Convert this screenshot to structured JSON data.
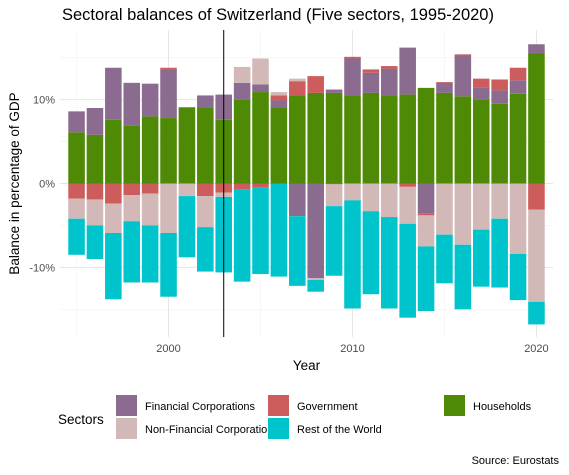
{
  "chart_data": {
    "type": "bar",
    "stacked": true,
    "title": "Sectoral balances of Switzerland (Five sectors, 1995-2020)",
    "xlabel": "Year",
    "ylabel": "Balance in percentage of GDP",
    "x_ticks": [
      2000,
      2010,
      2020
    ],
    "y_ticks": [
      -10,
      0,
      10
    ],
    "y_tick_labels": [
      "-10%",
      "0%",
      "10%"
    ],
    "xlim": [
      1994.1,
      2020.9
    ],
    "ylim": [
      -18.3,
      18.3
    ],
    "vline_year": 2003,
    "legend_title": "Sectors",
    "legend_position": "bottom",
    "source": "Source: Eurostats",
    "stack_order": [
      "Households",
      "Financial Corporations",
      "Government",
      "Non-Financial Corporations",
      "Rest of the World"
    ],
    "series": [
      {
        "name": "Financial Corporations",
        "color": "#8B6B8F"
      },
      {
        "name": "Government",
        "color": "#CD5C5C"
      },
      {
        "name": "Households",
        "color": "#4E8A05"
      },
      {
        "name": "Non-Financial Corporations",
        "color": "#D2B9B8"
      },
      {
        "name": "Rest of the World",
        "color": "#00C4CC"
      }
    ],
    "data": [
      {
        "year": 1995,
        "Households": 6.1,
        "Financial Corporations": 2.5,
        "Government": -1.8,
        "Non-Financial Corporations": -2.4,
        "Rest of the World": -4.3
      },
      {
        "year": 1996,
        "Households": 5.8,
        "Financial Corporations": 3.2,
        "Government": -1.9,
        "Non-Financial Corporations": -3.1,
        "Rest of the World": -4.0
      },
      {
        "year": 1997,
        "Households": 7.6,
        "Financial Corporations": 6.2,
        "Government": -2.4,
        "Non-Financial Corporations": -3.5,
        "Rest of the World": -7.9
      },
      {
        "year": 1998,
        "Households": 6.9,
        "Financial Corporations": 5.1,
        "Government": -1.4,
        "Non-Financial Corporations": -3.1,
        "Rest of the World": -7.3
      },
      {
        "year": 1999,
        "Households": 8.0,
        "Financial Corporations": 3.9,
        "Government": -1.2,
        "Non-Financial Corporations": -3.8,
        "Rest of the World": -6.8
      },
      {
        "year": 2000,
        "Households": 7.8,
        "Financial Corporations": 5.8,
        "Government": 0.2,
        "Non-Financial Corporations": -5.9,
        "Rest of the World": -7.6
      },
      {
        "year": 2001,
        "Households": 9.0,
        "Financial Corporations": 0.1,
        "Government": 0.0,
        "Non-Financial Corporations": -1.5,
        "Rest of the World": -7.3
      },
      {
        "year": 2002,
        "Households": 9.0,
        "Financial Corporations": 1.5,
        "Government": -1.5,
        "Non-Financial Corporations": -3.7,
        "Rest of the World": -5.3
      },
      {
        "year": 2003,
        "Households": 7.6,
        "Financial Corporations": 3.0,
        "Government": -1.1,
        "Non-Financial Corporations": -0.5,
        "Rest of the World": -9.0
      },
      {
        "year": 2004,
        "Households": 10.0,
        "Financial Corporations": 2.0,
        "Government": -0.7,
        "Non-Financial Corporations": 1.9,
        "Rest of the World": -11.0
      },
      {
        "year": 2005,
        "Households": 10.9,
        "Financial Corporations": 0.9,
        "Government": -0.5,
        "Non-Financial Corporations": 3.1,
        "Rest of the World": -10.3
      },
      {
        "year": 2006,
        "Households": 9.0,
        "Financial Corporations": 0.9,
        "Government": 0.6,
        "Non-Financial Corporations": 0.4,
        "Rest of the World": -11.1
      },
      {
        "year": 2007,
        "Households": 10.5,
        "Financial Corporations": -3.9,
        "Government": 1.7,
        "Non-Financial Corporations": 0.3,
        "Rest of the World": -8.3
      },
      {
        "year": 2008,
        "Households": 10.8,
        "Financial Corporations": -11.3,
        "Government": 2.0,
        "Non-Financial Corporations": -0.2,
        "Rest of the World": -1.4
      },
      {
        "year": 2009,
        "Households": 10.8,
        "Financial Corporations": 0.4,
        "Government": -0.1,
        "Non-Financial Corporations": -2.6,
        "Rest of the World": -8.3
      },
      {
        "year": 2010,
        "Households": 10.5,
        "Financial Corporations": 4.4,
        "Government": 0.2,
        "Non-Financial Corporations": -2.0,
        "Rest of the World": -12.9
      },
      {
        "year": 2011,
        "Households": 10.8,
        "Financial Corporations": 2.4,
        "Government": 0.4,
        "Non-Financial Corporations": -3.3,
        "Rest of the World": -9.9
      },
      {
        "year": 2012,
        "Households": 10.5,
        "Financial Corporations": 3.2,
        "Government": 0.3,
        "Non-Financial Corporations": -4.0,
        "Rest of the World": -10.9
      },
      {
        "year": 2013,
        "Households": 10.6,
        "Financial Corporations": 5.6,
        "Government": -0.4,
        "Non-Financial Corporations": -4.4,
        "Rest of the World": -11.2
      },
      {
        "year": 2014,
        "Households": 11.4,
        "Financial Corporations": -3.6,
        "Government": -0.2,
        "Non-Financial Corporations": -3.7,
        "Rest of the World": -7.7
      },
      {
        "year": 2015,
        "Households": 10.8,
        "Financial Corporations": 1.2,
        "Government": 0.1,
        "Non-Financial Corporations": -6.1,
        "Rest of the World": -5.8
      },
      {
        "year": 2016,
        "Households": 10.4,
        "Financial Corporations": 4.8,
        "Government": 0.2,
        "Non-Financial Corporations": -7.3,
        "Rest of the World": -7.7
      },
      {
        "year": 2017,
        "Households": 10.0,
        "Financial Corporations": 1.4,
        "Government": 1.1,
        "Non-Financial Corporations": -5.5,
        "Rest of the World": -6.8
      },
      {
        "year": 2018,
        "Households": 9.5,
        "Financial Corporations": 1.6,
        "Government": 1.3,
        "Non-Financial Corporations": -4.2,
        "Rest of the World": -8.2
      },
      {
        "year": 2019,
        "Households": 10.7,
        "Financial Corporations": 1.6,
        "Government": 1.5,
        "Non-Financial Corporations": -8.4,
        "Rest of the World": -5.5
      },
      {
        "year": 2020,
        "Households": 15.5,
        "Financial Corporations": 1.1,
        "Government": -3.1,
        "Non-Financial Corporations": -11.0,
        "Rest of the World": -2.7
      }
    ]
  }
}
